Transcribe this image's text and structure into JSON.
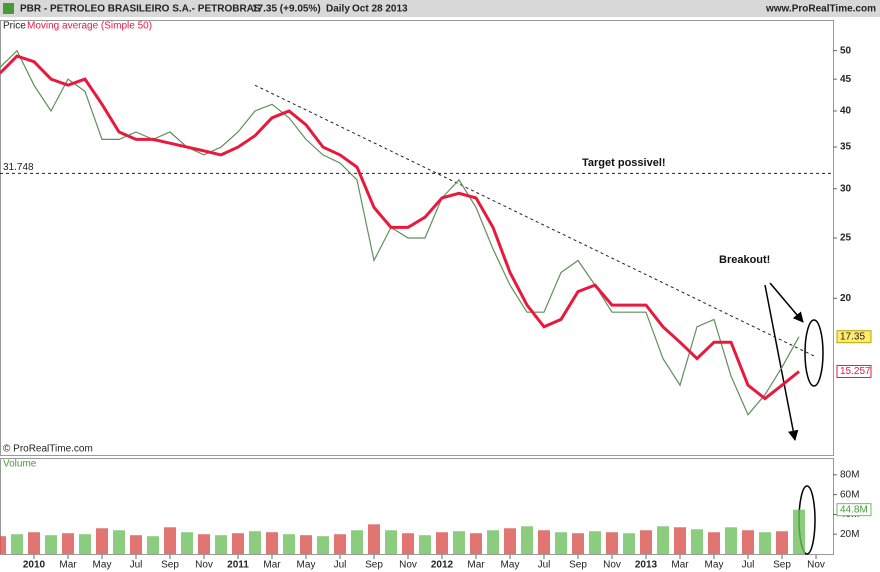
{
  "header": {
    "title": "PBR - PETROLEO BRASILEIRO S.A.- PETROBRAS",
    "quote": "17.35 (+9.05%)",
    "period": "Daily",
    "date": "Oct 28 2013",
    "site": "www.ProRealTime.com"
  },
  "footer": "© ProRealTime.com",
  "chart_data": [
    {
      "type": "line",
      "log_scale": true,
      "ylim": [
        11.2,
        55.8
      ],
      "yticks": [
        20,
        25,
        30,
        35,
        40,
        45,
        50
      ],
      "xlim": [
        "2009-11",
        "2013-12"
      ],
      "x": [
        "2009-11",
        "2009-12",
        "2010-01",
        "2010-02",
        "2010-03",
        "2010-04",
        "2010-05",
        "2010-06",
        "2010-07",
        "2010-08",
        "2010-09",
        "2010-10",
        "2010-11",
        "2010-12",
        "2011-01",
        "2011-02",
        "2011-03",
        "2011-04",
        "2011-05",
        "2011-06",
        "2011-07",
        "2011-08",
        "2011-09",
        "2011-10",
        "2011-11",
        "2011-12",
        "2012-01",
        "2012-02",
        "2012-03",
        "2012-04",
        "2012-05",
        "2012-06",
        "2012-07",
        "2012-08",
        "2012-09",
        "2012-10",
        "2012-11",
        "2012-12",
        "2013-01",
        "2013-02",
        "2013-03",
        "2013-04",
        "2013-05",
        "2013-06",
        "2013-07",
        "2013-08",
        "2013-09",
        "2013-10"
      ],
      "xticks": [
        {
          "value": "2010-01",
          "label": "2010"
        },
        {
          "value": "2010-03",
          "label": "Mar"
        },
        {
          "value": "2010-05",
          "label": "May"
        },
        {
          "value": "2010-07",
          "label": "Jul"
        },
        {
          "value": "2010-09",
          "label": "Sep"
        },
        {
          "value": "2010-11",
          "label": "Nov"
        },
        {
          "value": "2011-01",
          "label": "2011"
        },
        {
          "value": "2011-03",
          "label": "Mar"
        },
        {
          "value": "2011-05",
          "label": "May"
        },
        {
          "value": "2011-07",
          "label": "Jul"
        },
        {
          "value": "2011-09",
          "label": "Sep"
        },
        {
          "value": "2011-11",
          "label": "Nov"
        },
        {
          "value": "2012-01",
          "label": "2012"
        },
        {
          "value": "2012-03",
          "label": "Mar"
        },
        {
          "value": "2012-05",
          "label": "May"
        },
        {
          "value": "2012-07",
          "label": "Jul"
        },
        {
          "value": "2012-09",
          "label": "Sep"
        },
        {
          "value": "2012-11",
          "label": "Nov"
        },
        {
          "value": "2013-01",
          "label": "2013"
        },
        {
          "value": "2013-03",
          "label": "Mar"
        },
        {
          "value": "2013-05",
          "label": "May"
        },
        {
          "value": "2013-07",
          "label": "Jul"
        },
        {
          "value": "2013-09",
          "label": "Sep"
        },
        {
          "value": "2013-11",
          "label": "Nov"
        }
      ],
      "series": [
        {
          "name": "Price",
          "color": "#5f8f5a",
          "values": [
            47,
            50,
            44,
            40,
            45,
            43,
            36,
            36,
            37,
            36,
            37,
            35,
            34,
            35,
            37,
            40,
            41,
            39,
            36,
            34,
            33,
            31,
            23,
            26,
            25,
            25,
            29,
            31,
            28,
            24,
            21,
            19,
            19,
            22,
            23,
            21,
            19,
            19,
            19,
            16,
            14.5,
            18,
            18.5,
            15,
            13,
            14,
            15.5,
            17.35
          ]
        },
        {
          "name": "Moving average (Simple 50)",
          "color": "#e8193c",
          "values": [
            46,
            49,
            48,
            45,
            44,
            45,
            41,
            37,
            36,
            36,
            35.5,
            35,
            34.5,
            34,
            35,
            36.5,
            39,
            40,
            38,
            35,
            34,
            32.5,
            28,
            26,
            26,
            27,
            29,
            29.5,
            29,
            26,
            22,
            19.5,
            18,
            18.5,
            20.5,
            21,
            19.5,
            19.5,
            19.5,
            18,
            17,
            16,
            17,
            17,
            14.5,
            13.8,
            14.5,
            15.257
          ]
        }
      ],
      "hline": 31.748,
      "trendline": {
        "x": [
          "2011-02",
          "2013-11"
        ],
        "values": [
          44,
          16.1
        ]
      },
      "annotations": [
        "Target possivel!",
        "Breakout!"
      ]
    },
    {
      "type": "bar",
      "ylim": [
        0,
        96
      ],
      "yticks": [
        {
          "value": 20,
          "label": "20M"
        },
        {
          "value": 40,
          "label": "40M"
        },
        {
          "value": 60,
          "label": "60M"
        },
        {
          "value": 80,
          "label": "80M"
        }
      ],
      "series": [
        {
          "name": "Volume",
          "color": "#6fbf5f",
          "values": [
            18,
            20,
            22,
            19,
            21,
            20,
            26,
            24,
            19,
            18,
            27,
            22,
            20,
            19,
            21,
            23,
            22,
            20,
            19,
            18,
            20,
            24,
            30,
            24,
            21,
            19,
            22,
            23,
            21,
            24,
            26,
            28,
            24,
            22,
            21,
            23,
            22,
            21,
            24,
            28,
            27,
            25,
            22,
            27,
            24,
            22,
            23,
            44.8
          ]
        }
      ],
      "last_volume": {
        "value": 44.8,
        "label": "44.8M"
      }
    }
  ]
}
